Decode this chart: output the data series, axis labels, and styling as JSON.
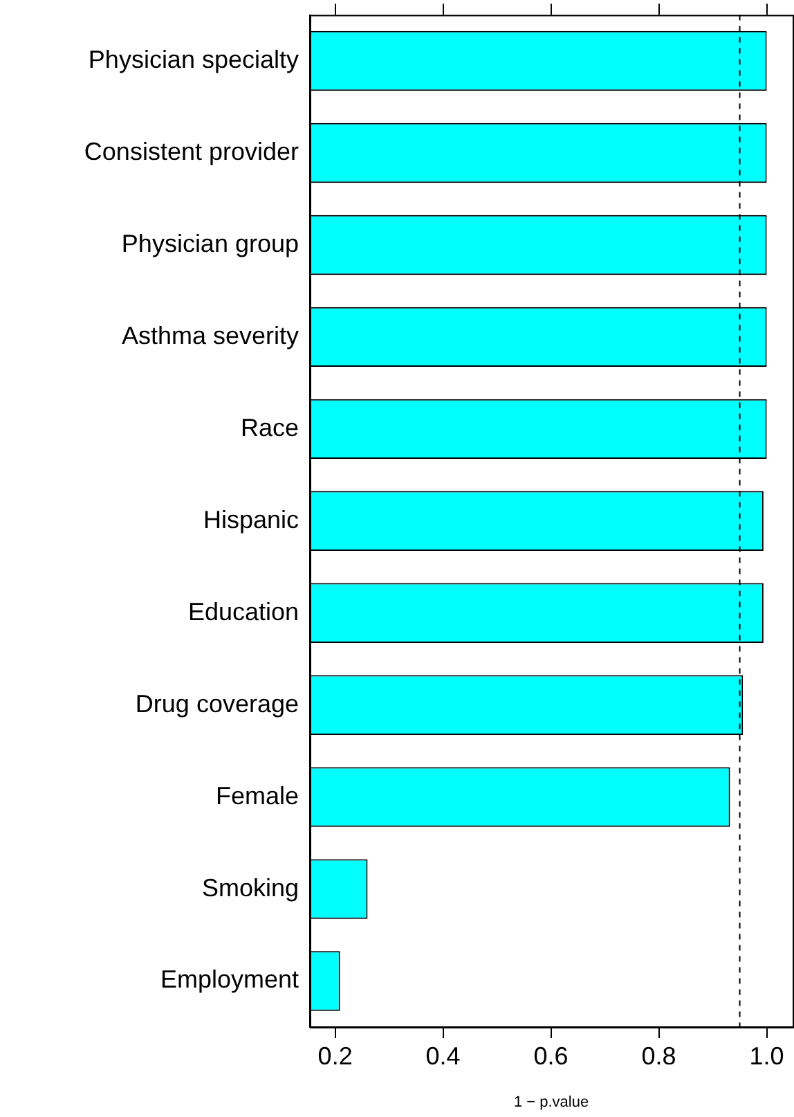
{
  "chart_data": {
    "type": "bar",
    "orientation": "horizontal",
    "xlabel": "1 − p.value",
    "categories": [
      "Physician specialty",
      "Consistent provider",
      "Physician group",
      "Asthma severity",
      "Race",
      "Hispanic",
      "Education",
      "Drug coverage",
      "Female",
      "Smoking",
      "Employment"
    ],
    "values": [
      1.0,
      1.0,
      1.0,
      1.0,
      1.0,
      0.994,
      0.994,
      0.956,
      0.932,
      0.26,
      0.209
    ],
    "color": "#00ffff",
    "xlim": [
      0.153,
      1.048
    ],
    "xticks": [
      {
        "value": 0.2,
        "label": "0.2"
      },
      {
        "value": 0.4,
        "label": "0.4"
      },
      {
        "value": 0.6,
        "label": "0.6"
      },
      {
        "value": 0.8,
        "label": "0.8"
      },
      {
        "value": 1.0,
        "label": "1.0"
      }
    ],
    "ref_lines": [
      {
        "axis": "x",
        "value": 0.95,
        "line_style": "dashed"
      }
    ],
    "grid": false,
    "legend": false
  }
}
